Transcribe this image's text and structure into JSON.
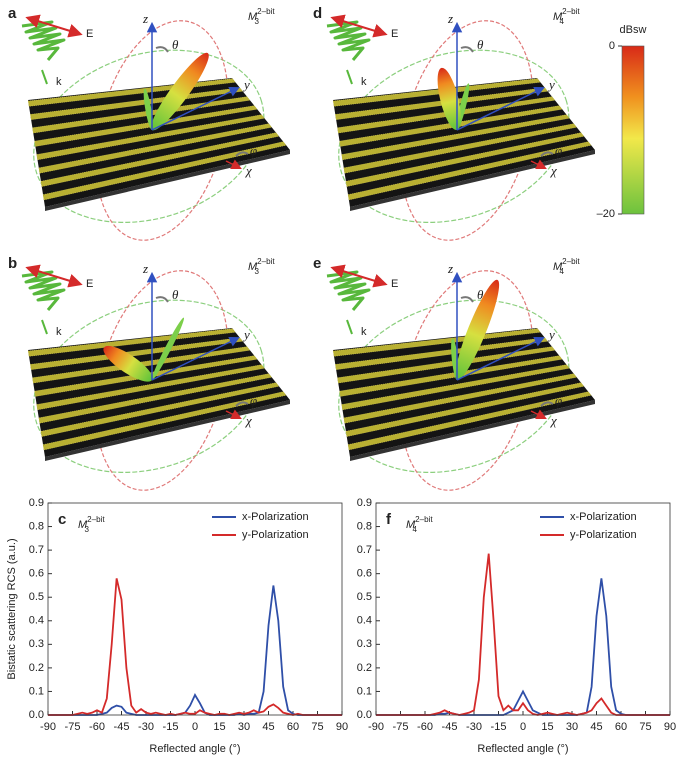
{
  "panels": [
    {
      "letter": "a",
      "label": {
        "base": "M",
        "sub": "3",
        "sup": "2–bit"
      },
      "z": "z",
      "y": "y",
      "theta": "θ",
      "phi": "φ",
      "chi": "χ",
      "k": "k",
      "E": "E"
    },
    {
      "letter": "b",
      "label": {
        "base": "M",
        "sub": "3",
        "sup": "2–bit"
      },
      "z": "z",
      "y": "y",
      "theta": "θ",
      "phi": "φ",
      "chi": "χ",
      "k": "k",
      "E": "E"
    },
    {
      "letter": "d",
      "label": {
        "base": "M",
        "sub": "4",
        "sup": "2–bit"
      },
      "z": "z",
      "y": "y",
      "theta": "θ",
      "phi": "φ",
      "chi": "χ",
      "k": "k",
      "E": "E"
    },
    {
      "letter": "e",
      "label": {
        "base": "M",
        "sub": "4",
        "sup": "2–bit"
      },
      "z": "z",
      "y": "y",
      "theta": "θ",
      "phi": "φ",
      "chi": "χ",
      "k": "k",
      "E": "E"
    }
  ],
  "colorbar": {
    "title": "dBsw",
    "ticks": [
      0,
      {
        "value": -20,
        "label": "–20"
      }
    ]
  },
  "chart_data": [
    {
      "type": "line",
      "panel": "c",
      "annotation": {
        "base": "M",
        "sub": "3",
        "sup": "2–bit"
      },
      "xlabel": "Reflected angle (°)",
      "ylabel": "Bistatic scattering RCS (a.u.)",
      "x": [
        -90,
        -87,
        -84,
        -81,
        -78,
        -75,
        -72,
        -69,
        -66,
        -63,
        -60,
        -57,
        -54,
        -51,
        -48,
        -45,
        -42,
        -39,
        -36,
        -33,
        -30,
        -27,
        -24,
        -21,
        -18,
        -15,
        -12,
        -9,
        -6,
        -3,
        0,
        3,
        6,
        9,
        12,
        15,
        18,
        21,
        24,
        27,
        30,
        33,
        36,
        39,
        42,
        45,
        48,
        51,
        54,
        57,
        60,
        63,
        66,
        69,
        72,
        75,
        78,
        81,
        84,
        87,
        90
      ],
      "xlim": [
        -90,
        90
      ],
      "xticks": [
        -90,
        -75,
        -60,
        -45,
        -30,
        -15,
        0,
        15,
        30,
        45,
        60,
        75,
        90
      ],
      "ylim": [
        0,
        0.9
      ],
      "yticks": [
        {
          "value": 0,
          "label": "0.0"
        },
        0.1,
        0.2,
        0.3,
        0.4,
        0.5,
        0.6,
        0.7,
        0.8,
        0.9
      ],
      "legend": "upper right",
      "series": [
        {
          "name": "x-Polarization",
          "color": "#2f4fa8",
          "values": [
            0,
            0,
            0,
            0,
            0,
            0,
            0,
            0,
            0,
            0,
            0,
            0.005,
            0.01,
            0.03,
            0.04,
            0.035,
            0.01,
            0.005,
            0,
            0,
            0,
            0,
            0,
            0,
            0,
            0,
            0,
            0.005,
            0.01,
            0.04,
            0.085,
            0.05,
            0.01,
            0,
            0,
            0,
            0,
            0,
            0,
            0.005,
            0,
            0.005,
            0.005,
            0.01,
            0.1,
            0.38,
            0.55,
            0.4,
            0.12,
            0.02,
            0.005,
            0,
            0,
            0,
            0,
            0,
            0,
            0,
            0,
            0,
            0
          ]
        },
        {
          "name": "y-Polarization",
          "color": "#d42a2a",
          "values": [
            0,
            0,
            0,
            0,
            0,
            0,
            0.005,
            0.01,
            0.005,
            0.01,
            0.02,
            0.01,
            0.07,
            0.3,
            0.58,
            0.49,
            0.2,
            0.04,
            0.01,
            0.025,
            0.01,
            0.005,
            0.01,
            0.005,
            0,
            0.005,
            0,
            0.005,
            0.01,
            0.005,
            0.005,
            0.02,
            0.01,
            0.005,
            0,
            0.005,
            0.005,
            0,
            0.005,
            0.01,
            0.005,
            0.01,
            0.02,
            0.01,
            0.015,
            0.035,
            0.045,
            0.03,
            0.01,
            0.005,
            0,
            0.005,
            0,
            0,
            0,
            0,
            0,
            0,
            0,
            0,
            0
          ]
        }
      ]
    },
    {
      "type": "line",
      "panel": "f",
      "annotation": {
        "base": "M",
        "sub": "4",
        "sup": "2–bit"
      },
      "xlabel": "Reflected angle (°)",
      "x": [
        -90,
        -87,
        -84,
        -81,
        -78,
        -75,
        -72,
        -69,
        -66,
        -63,
        -60,
        -57,
        -54,
        -51,
        -48,
        -45,
        -42,
        -39,
        -36,
        -33,
        -30,
        -27,
        -24,
        -21,
        -18,
        -15,
        -12,
        -9,
        -6,
        -3,
        0,
        3,
        6,
        9,
        12,
        15,
        18,
        21,
        24,
        27,
        30,
        33,
        36,
        39,
        42,
        45,
        48,
        51,
        54,
        57,
        60,
        63,
        66,
        69,
        72,
        75,
        78,
        81,
        84,
        87,
        90
      ],
      "xlim": [
        -90,
        90
      ],
      "xticks": [
        -90,
        -75,
        -60,
        -45,
        -30,
        -15,
        0,
        15,
        30,
        45,
        60,
        75,
        90
      ],
      "ylim": [
        0,
        0.9
      ],
      "yticks": [
        {
          "value": 0,
          "label": "0.0"
        },
        0.1,
        0.2,
        0.3,
        0.4,
        0.5,
        0.6,
        0.7,
        0.8,
        0.9
      ],
      "legend": "upper right",
      "series": [
        {
          "name": "x-Polarization",
          "color": "#2f4fa8",
          "values": [
            0,
            0,
            0,
            0,
            0,
            0,
            0,
            0,
            0,
            0,
            0,
            0,
            0,
            0.005,
            0.005,
            0.01,
            0.005,
            0,
            0,
            0,
            0,
            0,
            0,
            0,
            0,
            0,
            0,
            0.01,
            0.02,
            0.06,
            0.1,
            0.06,
            0.02,
            0.01,
            0,
            0,
            0,
            0,
            0,
            0,
            0,
            0,
            0.005,
            0.01,
            0.12,
            0.42,
            0.58,
            0.42,
            0.12,
            0.02,
            0.005,
            0,
            0,
            0,
            0,
            0,
            0,
            0,
            0,
            0,
            0
          ]
        },
        {
          "name": "y-Polarization",
          "color": "#d42a2a",
          "values": [
            0,
            0,
            0,
            0,
            0,
            0,
            0,
            0,
            0,
            0,
            0,
            0,
            0.005,
            0.01,
            0.02,
            0.01,
            0.005,
            0,
            0.005,
            0.01,
            0.02,
            0.15,
            0.5,
            0.685,
            0.4,
            0.08,
            0.02,
            0.04,
            0.02,
            0.02,
            0.05,
            0.02,
            0.005,
            0,
            0.005,
            0.01,
            0.005,
            0,
            0.005,
            0.01,
            0.005,
            0,
            0.005,
            0.01,
            0.02,
            0.05,
            0.07,
            0.04,
            0.01,
            0,
            0,
            0,
            0,
            0,
            0,
            0,
            0,
            0,
            0,
            0,
            0
          ]
        }
      ]
    }
  ]
}
